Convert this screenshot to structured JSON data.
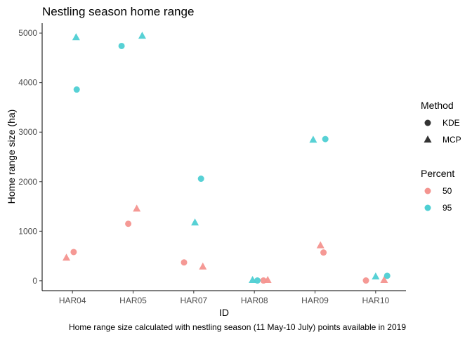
{
  "chart_data": {
    "type": "scatter",
    "title": "Nestling season home range",
    "xlabel": "ID",
    "ylabel": "Home range size (ha)",
    "caption": "Home range size calculated with nestling season (11 May-10 July) points available in 2019",
    "categories": [
      "HAR04",
      "HAR05",
      "HAR07",
      "HAR08",
      "HAR09",
      "HAR10"
    ],
    "ylim": [
      -200,
      5200
    ],
    "yticks": [
      0,
      1000,
      2000,
      3000,
      4000,
      5000
    ],
    "grid": false,
    "legend_position": "right",
    "legends": {
      "method": {
        "title": "Method",
        "entries": [
          {
            "label": "KDE",
            "shape": "circle"
          },
          {
            "label": "MCP",
            "shape": "triangle"
          }
        ]
      },
      "percent": {
        "title": "Percent",
        "entries": [
          {
            "label": "50",
            "color": "#f4948f"
          },
          {
            "label": "95",
            "color": "#4ecfd3"
          }
        ]
      }
    },
    "points": [
      {
        "x": "HAR04",
        "method": "KDE",
        "percent": "50",
        "y": 580,
        "jitter": 0.02
      },
      {
        "x": "HAR04",
        "method": "MCP",
        "percent": "50",
        "y": 470,
        "jitter": -0.1
      },
      {
        "x": "HAR04",
        "method": "KDE",
        "percent": "95",
        "y": 3860,
        "jitter": 0.07
      },
      {
        "x": "HAR04",
        "method": "MCP",
        "percent": "95",
        "y": 4920,
        "jitter": 0.06
      },
      {
        "x": "HAR05",
        "method": "KDE",
        "percent": "50",
        "y": 1150,
        "jitter": -0.08
      },
      {
        "x": "HAR05",
        "method": "MCP",
        "percent": "50",
        "y": 1460,
        "jitter": 0.06
      },
      {
        "x": "HAR05",
        "method": "KDE",
        "percent": "95",
        "y": 4740,
        "jitter": -0.19
      },
      {
        "x": "HAR05",
        "method": "MCP",
        "percent": "95",
        "y": 4950,
        "jitter": 0.15
      },
      {
        "x": "HAR07",
        "method": "KDE",
        "percent": "50",
        "y": 370,
        "jitter": -0.16
      },
      {
        "x": "HAR07",
        "method": "MCP",
        "percent": "50",
        "y": 290,
        "jitter": 0.15
      },
      {
        "x": "HAR07",
        "method": "KDE",
        "percent": "95",
        "y": 2060,
        "jitter": 0.12
      },
      {
        "x": "HAR07",
        "method": "MCP",
        "percent": "95",
        "y": 1180,
        "jitter": 0.02
      },
      {
        "x": "HAR08",
        "method": "KDE",
        "percent": "50",
        "y": 5,
        "jitter": 0.15
      },
      {
        "x": "HAR08",
        "method": "MCP",
        "percent": "50",
        "y": 20,
        "jitter": 0.22
      },
      {
        "x": "HAR08",
        "method": "KDE",
        "percent": "95",
        "y": 5,
        "jitter": 0.05
      },
      {
        "x": "HAR08",
        "method": "MCP",
        "percent": "95",
        "y": 20,
        "jitter": -0.03
      },
      {
        "x": "HAR09",
        "method": "KDE",
        "percent": "50",
        "y": 570,
        "jitter": 0.14
      },
      {
        "x": "HAR09",
        "method": "MCP",
        "percent": "50",
        "y": 720,
        "jitter": 0.09
      },
      {
        "x": "HAR09",
        "method": "KDE",
        "percent": "95",
        "y": 2860,
        "jitter": 0.17
      },
      {
        "x": "HAR09",
        "method": "MCP",
        "percent": "95",
        "y": 2850,
        "jitter": -0.03
      },
      {
        "x": "HAR10",
        "method": "KDE",
        "percent": "50",
        "y": 5,
        "jitter": -0.16
      },
      {
        "x": "HAR10",
        "method": "MCP",
        "percent": "50",
        "y": 20,
        "jitter": 0.14
      },
      {
        "x": "HAR10",
        "method": "KDE",
        "percent": "95",
        "y": 100,
        "jitter": 0.19
      },
      {
        "x": "HAR10",
        "method": "MCP",
        "percent": "95",
        "y": 90,
        "jitter": 0.0
      }
    ]
  }
}
